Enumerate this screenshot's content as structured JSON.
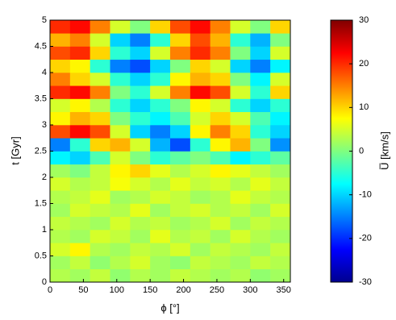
{
  "chart_data": {
    "type": "heatmap",
    "colormap": "jet",
    "xlabel": "ϕ [°]",
    "ylabel": "t [Gyr]",
    "colorbar_label": "U̅ [km/s]",
    "x": [
      15,
      45,
      75,
      105,
      135,
      165,
      195,
      225,
      255,
      285,
      315,
      345
    ],
    "y": [
      0.125,
      0.375,
      0.625,
      0.875,
      1.125,
      1.375,
      1.625,
      1.875,
      2.125,
      2.375,
      2.625,
      2.875,
      3.125,
      3.375,
      3.625,
      3.875,
      4.125,
      4.375,
      4.625,
      4.875
    ],
    "z": [
      [
        3,
        2,
        4,
        1,
        3,
        2,
        4,
        3,
        2,
        3,
        1,
        2
      ],
      [
        2,
        4,
        1,
        3,
        5,
        2,
        1,
        4,
        3,
        2,
        4,
        3
      ],
      [
        5,
        8,
        3,
        2,
        4,
        3,
        5,
        2,
        4,
        3,
        2,
        4
      ],
      [
        3,
        2,
        5,
        4,
        2,
        6,
        3,
        4,
        2,
        5,
        3,
        2
      ],
      [
        4,
        3,
        2,
        5,
        3,
        4,
        2,
        3,
        5,
        2,
        4,
        3
      ],
      [
        2,
        5,
        4,
        3,
        6,
        2,
        4,
        5,
        3,
        4,
        2,
        5
      ],
      [
        3,
        4,
        6,
        2,
        3,
        5,
        4,
        2,
        3,
        6,
        4,
        3
      ],
      [
        5,
        3,
        4,
        7,
        5,
        3,
        6,
        4,
        5,
        3,
        6,
        4
      ],
      [
        2,
        0,
        4,
        8,
        10,
        6,
        3,
        5,
        8,
        6,
        4,
        2
      ],
      [
        -8,
        -10,
        -3,
        5,
        0,
        -5,
        -2,
        0,
        -3,
        -8,
        -5,
        -2
      ],
      [
        -15,
        -5,
        10,
        12,
        5,
        -12,
        -18,
        -5,
        8,
        12,
        0,
        -14
      ],
      [
        18,
        22,
        18,
        5,
        -10,
        -15,
        -10,
        8,
        15,
        10,
        -5,
        -10
      ],
      [
        8,
        12,
        10,
        0,
        -5,
        -8,
        -3,
        5,
        10,
        5,
        -3,
        -8
      ],
      [
        5,
        8,
        3,
        -5,
        -10,
        -5,
        0,
        8,
        5,
        -5,
        -10,
        -5
      ],
      [
        20,
        22,
        15,
        0,
        -5,
        5,
        15,
        22,
        18,
        5,
        -5,
        10
      ],
      [
        15,
        10,
        5,
        -5,
        -10,
        -5,
        8,
        12,
        10,
        0,
        -8,
        5
      ],
      [
        10,
        8,
        -5,
        -15,
        -18,
        -10,
        0,
        10,
        5,
        -10,
        -15,
        -8
      ],
      [
        18,
        20,
        10,
        -5,
        -10,
        5,
        15,
        20,
        15,
        0,
        -10,
        5
      ],
      [
        12,
        15,
        5,
        -10,
        -15,
        -5,
        10,
        18,
        12,
        -5,
        -12,
        0
      ],
      [
        20,
        22,
        15,
        5,
        0,
        10,
        18,
        22,
        15,
        5,
        0,
        10
      ]
    ],
    "xlim": [
      0,
      360
    ],
    "xticks": [
      0,
      50,
      100,
      150,
      200,
      250,
      300,
      350
    ],
    "ylim": [
      0,
      5
    ],
    "yticks": [
      0,
      0.5,
      1,
      1.5,
      2,
      2.5,
      3,
      3.5,
      4,
      4.5,
      5
    ],
    "clim": [
      -30,
      30
    ],
    "cticks": [
      -30,
      -20,
      -10,
      0,
      10,
      20,
      30
    ]
  }
}
